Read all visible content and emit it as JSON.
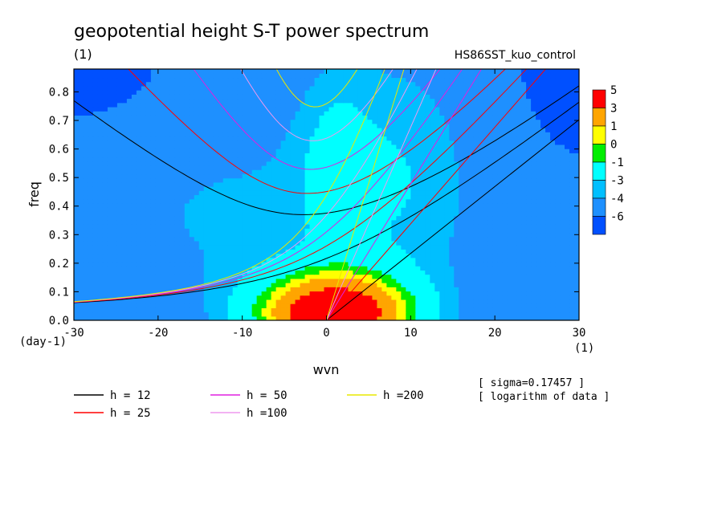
{
  "chart_data": {
    "type": "heatmap",
    "title": "geopotential height S-T power spectrum",
    "units_left": "(1)",
    "subtitle_right": "HS86SST_kuo_control",
    "xlabel": "wvn",
    "ylabel": "freq",
    "x_unit_label": "(1)",
    "y_unit_label": "(day-1)",
    "xlim": [
      -30,
      30
    ],
    "ylim": [
      0,
      0.88
    ],
    "x_ticks": [
      "-30",
      "-20",
      "-10",
      "0",
      "10",
      "20",
      "30"
    ],
    "y_ticks": [
      "0.0",
      "0.1",
      "0.2",
      "0.3",
      "0.4",
      "0.5",
      "0.6",
      "0.7",
      "0.8"
    ],
    "colorbar": {
      "labels": [
        "5",
        "3",
        "1",
        "0",
        "-1",
        "-3",
        "-4",
        "-6"
      ],
      "colors": [
        "#ff0000",
        "#ffa500",
        "#ffff00",
        "#00ee00",
        "#00ffff",
        "#00bfff",
        "#1e90ff",
        "#0050ff"
      ]
    },
    "shading_levels": {
      "values": [
        -6,
        -4,
        -3,
        -1,
        0,
        1,
        3
      ],
      "colors": [
        "#0050ff",
        "#1e90ff",
        "#00bfff",
        "#00ffff",
        "#00ee00",
        "#ffff00",
        "#ffa500",
        "#ff0000"
      ]
    },
    "dispersion_curves": [
      {
        "name": "h = 12",
        "equivalent_depth_m": 12,
        "color": "#000000"
      },
      {
        "name": "h = 25",
        "equivalent_depth_m": 25,
        "color": "#ff0000"
      },
      {
        "name": "h = 50",
        "equivalent_depth_m": 50,
        "color": "#e020e0"
      },
      {
        "name": "h =100",
        "equivalent_depth_m": 100,
        "color": "#ee99ee"
      },
      {
        "name": "h =200",
        "equivalent_depth_m": 200,
        "color": "#e8e800"
      }
    ],
    "notes": [
      "[ sigma=0.17457 ]",
      "[ logarithm of data ]"
    ]
  }
}
